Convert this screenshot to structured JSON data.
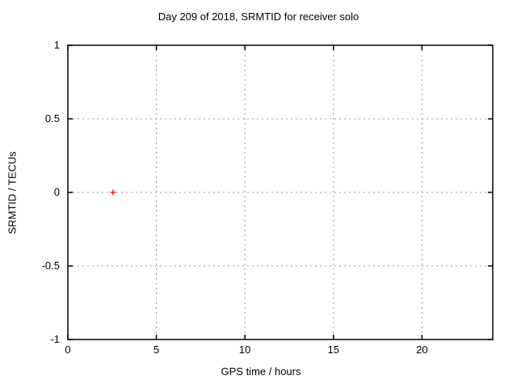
{
  "chart_data": {
    "type": "scatter",
    "title": "Day 209 of 2018, SRMTID for receiver solo",
    "xlabel": "GPS time / hours",
    "ylabel": "SRMTID / TECUs",
    "xlim": [
      0,
      24
    ],
    "ylim": [
      -1,
      1
    ],
    "xticks": {
      "values": [
        0,
        5,
        10,
        15,
        20
      ],
      "labels": [
        "0",
        "5",
        "10",
        "15",
        "20"
      ]
    },
    "yticks": {
      "values": [
        -1,
        -0.5,
        0,
        0.5,
        1
      ],
      "labels": [
        "-1",
        "-0.5",
        "0",
        "0.5",
        "1"
      ]
    },
    "grid": true,
    "grid_style": "dashed",
    "tick_style": "inward-mirrored",
    "colors": {
      "background": "#ffffff",
      "axis": "#000000",
      "grid": "#999999",
      "marker": "#ff0000"
    },
    "series": [
      {
        "marker": "plus",
        "color": "#ff0000",
        "points": [
          {
            "x": 2.55,
            "y": 0.0
          }
        ]
      }
    ]
  }
}
